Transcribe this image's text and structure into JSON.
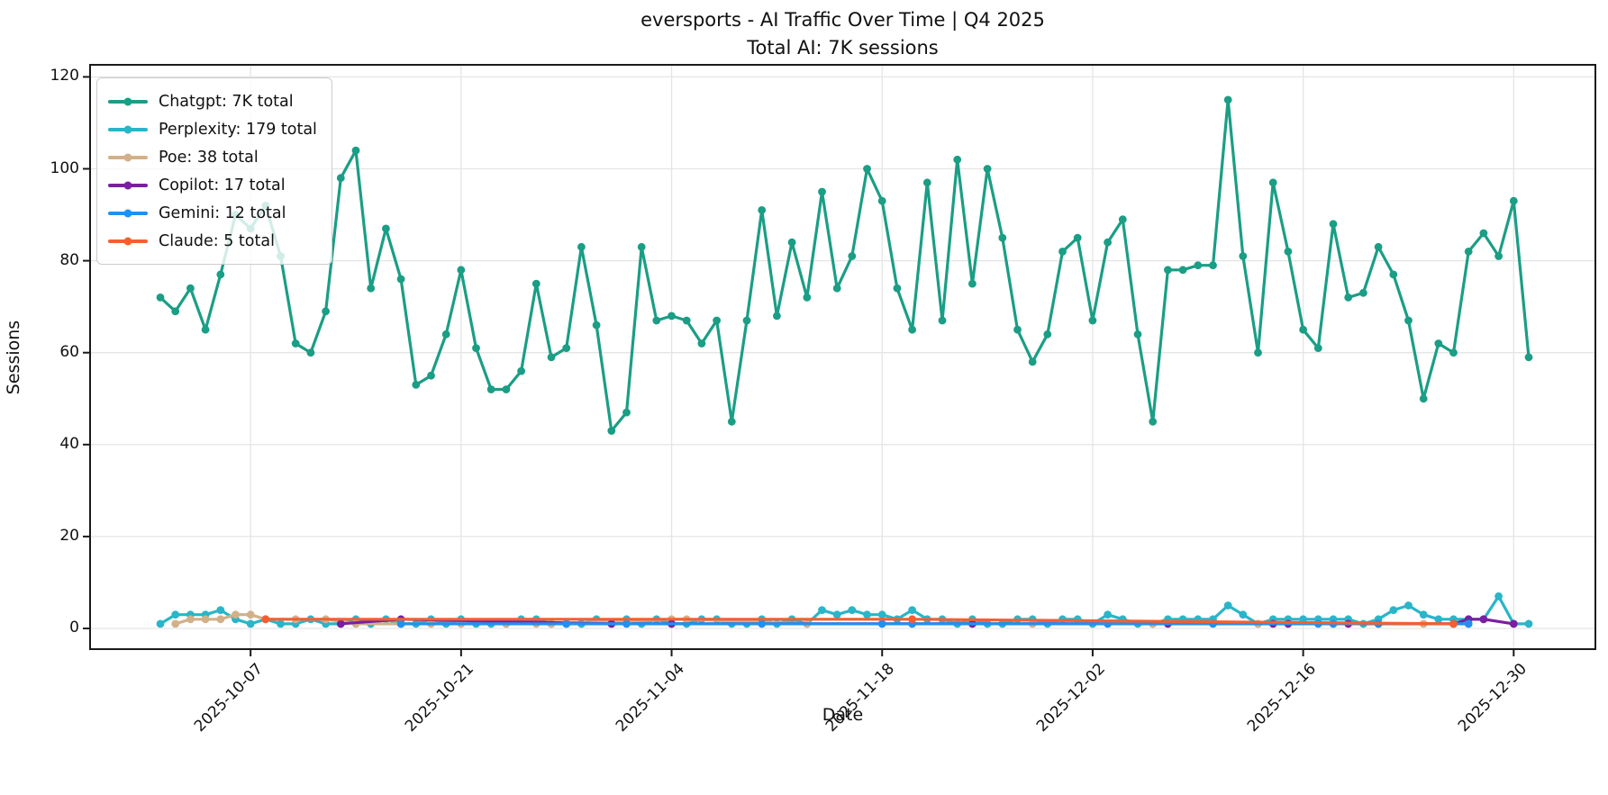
{
  "title": {
    "line1": "eversports - AI Traffic Over Time | Q4 2025",
    "line2": "Total AI: 7K sessions"
  },
  "axes": {
    "x_label": "Date",
    "y_label": "Sessions",
    "y_ticks": [
      0,
      20,
      40,
      60,
      80,
      100,
      120
    ],
    "x_ticks": [
      {
        "label": "2025-10-07",
        "day": 6
      },
      {
        "label": "2025-10-21",
        "day": 20
      },
      {
        "label": "2025-11-04",
        "day": 34
      },
      {
        "label": "2025-11-18",
        "day": 48
      },
      {
        "label": "2025-12-02",
        "day": 62
      },
      {
        "label": "2025-12-16",
        "day": 76
      },
      {
        "label": "2025-12-30",
        "day": 90
      }
    ]
  },
  "legend": [
    {
      "label": "Chatgpt: 7K total",
      "color": "#1a9e85"
    },
    {
      "label": "Perplexity: 179 total",
      "color": "#2ab5c8"
    },
    {
      "label": "Poe: 38 total",
      "color": "#d2b08a"
    },
    {
      "label": "Copilot: 17 total",
      "color": "#7b1fa2"
    },
    {
      "label": "Gemini: 12 total",
      "color": "#2090f0"
    },
    {
      "label": "Claude: 5 total",
      "color": "#f45f32"
    }
  ],
  "chart_data": {
    "type": "line",
    "title": "eversports - AI Traffic Over Time | Q4 2025",
    "subtitle": "Total AI: 7K sessions",
    "xlabel": "Date",
    "ylabel": "Sessions",
    "ylim": [
      0,
      120
    ],
    "grid": true,
    "legend_position": "upper-left",
    "x_start_date": "2025-10-01",
    "x_end_date": "2025-12-31",
    "x_unit": "day index from 2025-10-01",
    "series": [
      {
        "name": "Chatgpt",
        "total": "7K",
        "color": "#1a9e85",
        "values": [
          72,
          69,
          74,
          65,
          77,
          90,
          87,
          92,
          81,
          62,
          60,
          69,
          98,
          104,
          74,
          87,
          76,
          53,
          55,
          64,
          78,
          61,
          52,
          52,
          56,
          75,
          59,
          61,
          83,
          66,
          43,
          47,
          83,
          67,
          68,
          67,
          62,
          67,
          45,
          67,
          91,
          68,
          84,
          72,
          95,
          74,
          81,
          100,
          93,
          74,
          65,
          97,
          67,
          102,
          75,
          100,
          85,
          65,
          58,
          64,
          82,
          85,
          67,
          84,
          89,
          64,
          45,
          78,
          78,
          79,
          79,
          115,
          81,
          60,
          97,
          82,
          65,
          61,
          88,
          72,
          73,
          83,
          77,
          67,
          50,
          62,
          60,
          82,
          86,
          81,
          93,
          59
        ]
      },
      {
        "name": "Perplexity",
        "total": 179,
        "color": "#2ab5c8",
        "values": [
          1,
          3,
          3,
          3,
          4,
          2,
          1,
          2,
          1,
          1,
          2,
          1,
          1,
          2,
          1,
          2,
          1,
          1,
          2,
          1,
          2,
          1,
          1,
          1,
          2,
          2,
          1,
          1,
          1,
          2,
          1,
          2,
          1,
          2,
          1,
          1,
          2,
          2,
          1,
          1,
          2,
          1,
          2,
          1,
          4,
          3,
          4,
          3,
          3,
          2,
          4,
          2,
          2,
          1,
          2,
          1,
          1,
          2,
          2,
          1,
          2,
          2,
          1,
          3,
          2,
          1,
          1,
          2,
          2,
          2,
          2,
          5,
          3,
          1,
          2,
          2,
          2,
          2,
          2,
          2,
          1,
          2,
          4,
          5,
          3,
          2,
          2,
          2,
          2,
          7,
          1,
          1
        ]
      },
      {
        "name": "Poe",
        "total": 38,
        "color": "#d2b08a",
        "points": [
          [
            1,
            1
          ],
          [
            2,
            2
          ],
          [
            3,
            2
          ],
          [
            4,
            2
          ],
          [
            5,
            3
          ],
          [
            6,
            3
          ],
          [
            7,
            2
          ],
          [
            9,
            2
          ],
          [
            11,
            2
          ],
          [
            13,
            1
          ],
          [
            16,
            1
          ],
          [
            18,
            1
          ],
          [
            20,
            1
          ],
          [
            23,
            1
          ],
          [
            25,
            1
          ],
          [
            26,
            1
          ],
          [
            34,
            2
          ],
          [
            35,
            2
          ],
          [
            43,
            1
          ],
          [
            54,
            1
          ],
          [
            58,
            1
          ],
          [
            66,
            1
          ],
          [
            73,
            1
          ],
          [
            78,
            1
          ],
          [
            84,
            1
          ],
          [
            87,
            1
          ]
        ]
      },
      {
        "name": "Copilot",
        "total": 17,
        "color": "#7b1fa2",
        "points": [
          [
            12,
            1
          ],
          [
            16,
            2
          ],
          [
            30,
            1
          ],
          [
            34,
            1
          ],
          [
            54,
            1
          ],
          [
            67,
            1
          ],
          [
            74,
            1
          ],
          [
            75,
            1
          ],
          [
            79,
            1
          ],
          [
            81,
            1
          ],
          [
            86,
            1
          ],
          [
            87,
            2
          ],
          [
            88,
            2
          ],
          [
            90,
            1
          ]
        ]
      },
      {
        "name": "Gemini",
        "total": 12,
        "color": "#2090f0",
        "points": [
          [
            16,
            1
          ],
          [
            27,
            1
          ],
          [
            31,
            1
          ],
          [
            40,
            1
          ],
          [
            48,
            1
          ],
          [
            50,
            1
          ],
          [
            63,
            1
          ],
          [
            70,
            1
          ],
          [
            77,
            1
          ],
          [
            78,
            1
          ],
          [
            81,
            1
          ],
          [
            87,
            1
          ]
        ]
      },
      {
        "name": "Claude",
        "total": 5,
        "color": "#f45f32",
        "points": [
          [
            7,
            2
          ],
          [
            50,
            2
          ],
          [
            86,
            1
          ]
        ]
      }
    ]
  },
  "style": {
    "grid_color": "#e5e5e5",
    "spine_color": "#1a1a1a",
    "background": "#ffffff"
  }
}
